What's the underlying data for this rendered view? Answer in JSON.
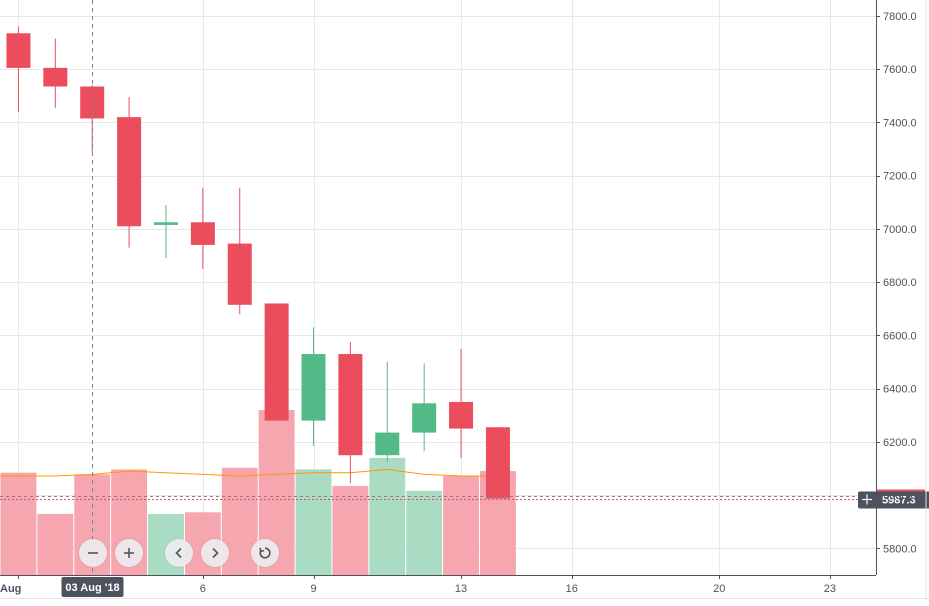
{
  "chart_data": {
    "type": "candlestick",
    "title": "",
    "xlabel": "",
    "ylabel": "",
    "ylim": [
      5700,
      7860
    ],
    "yticks": [
      5800,
      6000,
      6200,
      6400,
      6600,
      6800,
      7000,
      7200,
      7400,
      7600,
      7800
    ],
    "ytick_labels": [
      "5800.0",
      "6000.0",
      "6200.0",
      "6400.0",
      "6600.0",
      "6800.0",
      "7000.0",
      "7200.0",
      "7400.0",
      "7600.0",
      "7800.0"
    ],
    "xlim": [
      "2018-07-31T12:00",
      "2018-08-24T06:00"
    ],
    "xticks": [
      {
        "date": "2018-08-01",
        "label": "Aug"
      },
      {
        "date": "2018-08-06",
        "label": "6"
      },
      {
        "date": "2018-08-09",
        "label": "9"
      },
      {
        "date": "2018-08-13",
        "label": "13"
      },
      {
        "date": "2018-08-16",
        "label": "16"
      },
      {
        "date": "2018-08-20",
        "label": "20"
      },
      {
        "date": "2018-08-23",
        "label": "23"
      }
    ],
    "candles": [
      {
        "date": "2018-08-01",
        "open": 7735,
        "high": 7760,
        "low": 7440,
        "close": 7605,
        "volume": 0.62
      },
      {
        "date": "2018-08-02",
        "open": 7605,
        "high": 7715,
        "low": 7455,
        "close": 7535,
        "volume": 0.37
      },
      {
        "date": "2018-08-03",
        "open": 7535,
        "high": 7540,
        "low": 7285,
        "close": 7415,
        "volume": 0.61
      },
      {
        "date": "2018-08-04",
        "open": 7420,
        "high": 7495,
        "low": 6930,
        "close": 7010,
        "volume": 0.64
      },
      {
        "date": "2018-08-05",
        "open": 7015,
        "high": 7090,
        "low": 6890,
        "close": 7025,
        "volume": 0.37
      },
      {
        "date": "2018-08-06",
        "open": 7025,
        "high": 7155,
        "low": 6850,
        "close": 6940,
        "volume": 0.38
      },
      {
        "date": "2018-08-07",
        "open": 6945,
        "high": 7155,
        "low": 6680,
        "close": 6715,
        "volume": 0.65
      },
      {
        "date": "2018-08-08",
        "open": 6720,
        "high": 6720,
        "low": 6285,
        "close": 6280,
        "volume": 1.0
      },
      {
        "date": "2018-08-09",
        "open": 6280,
        "high": 6630,
        "low": 6185,
        "close": 6530,
        "volume": 0.64
      },
      {
        "date": "2018-08-10",
        "open": 6530,
        "high": 6575,
        "low": 6045,
        "close": 6150,
        "volume": 0.54
      },
      {
        "date": "2018-08-11",
        "open": 6150,
        "high": 6500,
        "low": 6125,
        "close": 6235,
        "volume": 0.71
      },
      {
        "date": "2018-08-12",
        "open": 6235,
        "high": 6495,
        "low": 6165,
        "close": 6345,
        "volume": 0.51
      },
      {
        "date": "2018-08-13",
        "open": 6350,
        "high": 6550,
        "low": 6140,
        "close": 6250,
        "volume": 0.6
      },
      {
        "date": "2018-08-14",
        "open": 6255,
        "high": 6255,
        "low": 5990,
        "close": 5987.3,
        "volume": 0.63
      }
    ],
    "volume_ma": [
      0.6,
      0.6,
      0.61,
      0.63,
      0.62,
      0.61,
      0.6,
      0.61,
      0.62,
      0.62,
      0.64,
      0.61,
      0.6,
      0.6
    ],
    "last_price": 5987.3,
    "last_price_label": "5987.3",
    "crosshair": {
      "date": "2018-08-03",
      "label": "03 Aug '18"
    },
    "grid": true,
    "colors": {
      "up": "#53b987",
      "down": "#eb4d5c",
      "up_volume": "#a9dcc3",
      "down_volume": "#f5a6ae",
      "volume_ma": "#ff9800",
      "grid": "#e8e8ec",
      "axis_text": "#4c525e",
      "last_price_badge": "#4c525e",
      "crosshair": "#758696"
    }
  },
  "controls": [
    {
      "name": "zoom-out-button",
      "icon": "minus-icon"
    },
    {
      "name": "zoom-in-button",
      "icon": "plus-icon"
    },
    {
      "name": "scroll-left-button",
      "icon": "chevron-left-icon"
    },
    {
      "name": "scroll-right-button",
      "icon": "chevron-right-icon"
    },
    {
      "name": "reset-chart-button",
      "icon": "reset-icon"
    }
  ]
}
